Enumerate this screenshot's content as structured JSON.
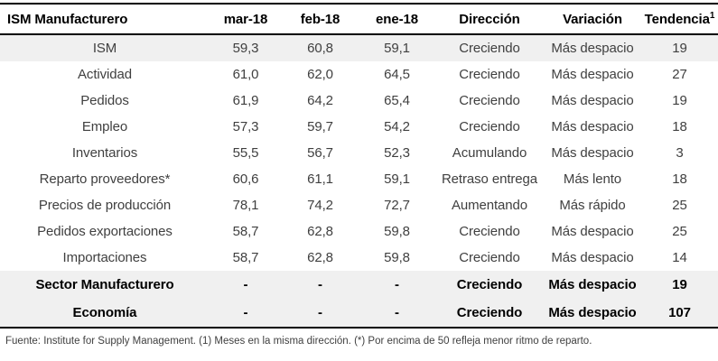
{
  "colors": {
    "background": "#ffffff",
    "rule_line": "#000000",
    "header_text": "#000000",
    "body_text": "#404040",
    "highlight_row_bg": "#f0f0f0",
    "summary_section_bg": "#f0f0f0"
  },
  "chart_data": {
    "type": "table",
    "title": "ISM Manufacturero",
    "columns": [
      "mar-18",
      "feb-18",
      "ene-18",
      "Dirección",
      "Variación",
      "Tendencia"
    ],
    "tendencia_sup": "1",
    "rows": [
      {
        "label": "ISM",
        "mar": "59,3",
        "feb": "60,8",
        "ene": "59,1",
        "direccion": "Creciendo",
        "variacion": "Más despacio",
        "tendencia": "19",
        "highlight": true
      },
      {
        "label": "Actividad",
        "mar": "61,0",
        "feb": "62,0",
        "ene": "64,5",
        "direccion": "Creciendo",
        "variacion": "Más despacio",
        "tendencia": "27"
      },
      {
        "label": "Pedidos",
        "mar": "61,9",
        "feb": "64,2",
        "ene": "65,4",
        "direccion": "Creciendo",
        "variacion": "Más despacio",
        "tendencia": "19"
      },
      {
        "label": "Empleo",
        "mar": "57,3",
        "feb": "59,7",
        "ene": "54,2",
        "direccion": "Creciendo",
        "variacion": "Más despacio",
        "tendencia": "18"
      },
      {
        "label": "Inventarios",
        "mar": "55,5",
        "feb": "56,7",
        "ene": "52,3",
        "direccion": "Acumulando",
        "variacion": "Más despacio",
        "tendencia": "3"
      },
      {
        "label": "Reparto proveedores*",
        "mar": "60,6",
        "feb": "61,1",
        "ene": "59,1",
        "direccion": "Retraso entrega",
        "variacion": "Más lento",
        "tendencia": "18"
      },
      {
        "label": "Precios de producción",
        "mar": "78,1",
        "feb": "74,2",
        "ene": "72,7",
        "direccion": "Aumentando",
        "variacion": "Más rápido",
        "tendencia": "25"
      },
      {
        "label": "Pedidos exportaciones",
        "mar": "58,7",
        "feb": "62,8",
        "ene": "59,8",
        "direccion": "Creciendo",
        "variacion": "Más despacio",
        "tendencia": "25"
      },
      {
        "label": "Importaciones",
        "mar": "58,7",
        "feb": "62,8",
        "ene": "59,8",
        "direccion": "Creciendo",
        "variacion": "Más despacio",
        "tendencia": "14"
      }
    ],
    "summary_rows": [
      {
        "label": "Sector Manufacturero",
        "mar": "-",
        "feb": "-",
        "ene": "-",
        "direccion": "Creciendo",
        "variacion": "Más despacio",
        "tendencia": "19"
      },
      {
        "label": "Economía",
        "mar": "-",
        "feb": "-",
        "ene": "-",
        "direccion": "Creciendo",
        "variacion": "Más despacio",
        "tendencia": "107"
      }
    ],
    "footnote": "Fuente: Institute for Supply Management. (1) Meses en la misma dirección. (*) Por encima de 50 refleja menor ritmo de reparto."
  }
}
